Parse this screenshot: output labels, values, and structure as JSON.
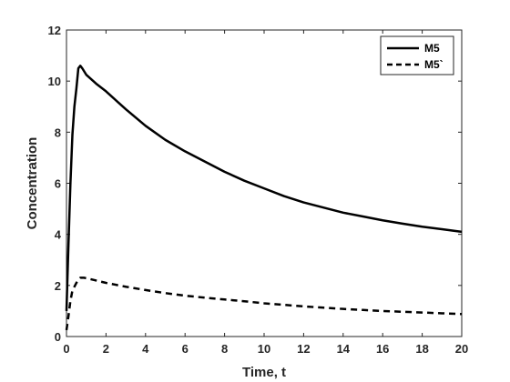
{
  "chart_data": {
    "type": "line",
    "title": "",
    "xlabel": "Time, t",
    "ylabel": "Concentration",
    "xlim": [
      0,
      20
    ],
    "ylim": [
      0,
      12
    ],
    "xticks": [
      "0",
      "2",
      "4",
      "6",
      "8",
      "10",
      "12",
      "14",
      "16",
      "18",
      "20"
    ],
    "yticks": [
      "0",
      "2",
      "4",
      "6",
      "8",
      "10",
      "12"
    ],
    "grid": false,
    "legend_position": "top-right",
    "series": [
      {
        "name": "M5",
        "color": "#000000",
        "dash": "solid",
        "x": [
          0,
          0.1,
          0.2,
          0.3,
          0.4,
          0.5,
          0.6,
          0.7,
          0.8,
          1,
          1.5,
          2,
          3,
          4,
          5,
          6,
          7,
          8,
          9,
          10,
          11,
          12,
          13,
          14,
          15,
          16,
          17,
          18,
          19,
          20
        ],
        "y": [
          1.0,
          3.6,
          6.0,
          7.9,
          9.0,
          9.7,
          10.5,
          10.6,
          10.5,
          10.25,
          9.9,
          9.6,
          8.9,
          8.25,
          7.7,
          7.25,
          6.85,
          6.45,
          6.1,
          5.8,
          5.5,
          5.25,
          5.05,
          4.85,
          4.7,
          4.55,
          4.42,
          4.3,
          4.2,
          4.1
        ]
      },
      {
        "name": "M5`",
        "color": "#000000",
        "dash": "dashed",
        "x": [
          0,
          0.1,
          0.2,
          0.3,
          0.5,
          0.7,
          0.9,
          1.2,
          2,
          3,
          4,
          5,
          6,
          7,
          8,
          9,
          10,
          11,
          12,
          13,
          14,
          15,
          16,
          17,
          18,
          19,
          20
        ],
        "y": [
          0.25,
          0.8,
          1.4,
          1.8,
          2.1,
          2.3,
          2.3,
          2.25,
          2.1,
          1.95,
          1.82,
          1.7,
          1.6,
          1.52,
          1.45,
          1.38,
          1.3,
          1.24,
          1.18,
          1.13,
          1.08,
          1.04,
          1.0,
          0.97,
          0.94,
          0.91,
          0.88
        ]
      }
    ]
  }
}
